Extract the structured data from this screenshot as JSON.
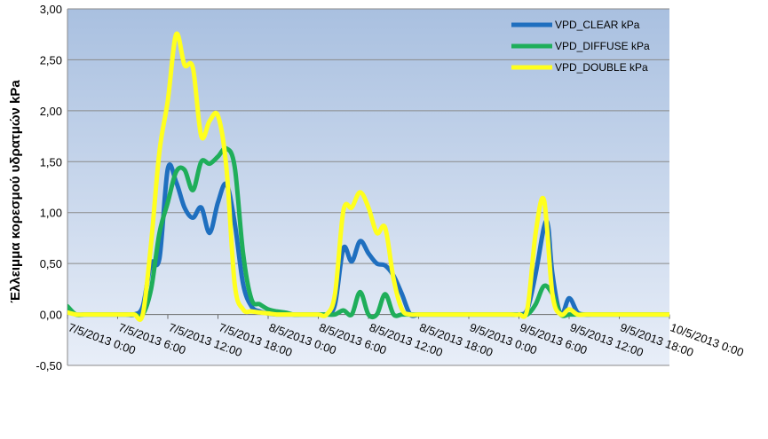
{
  "chart_data": {
    "type": "line",
    "ylabel": "Έλλειμμα κορεσμού υδρατμών kPa",
    "xlabel": "",
    "title": "",
    "ylim": [
      -0.5,
      3.0
    ],
    "yticks": [
      "-0,50",
      "0,00",
      "0,50",
      "1,00",
      "1,50",
      "2,00",
      "2,50",
      "3,00"
    ],
    "ytick_values": [
      -0.5,
      0,
      0.5,
      1.0,
      1.5,
      2.0,
      2.5,
      3.0
    ],
    "xlim_hours": [
      0,
      72
    ],
    "xtick_labels": [
      "7/5/2013 0:00",
      "7/5/2013 6:00",
      "7/5/2013 12:00",
      "7/5/2013 18:00",
      "8/5/2013 0:00",
      "8/5/2013 6:00",
      "8/5/2013 12:00",
      "8/5/2013 18:00",
      "9/5/2013 0:00",
      "9/5/2013 6:00",
      "9/5/2013 12:00",
      "9/5/2013 18:00",
      "10/5/2013 0:00"
    ],
    "grid": true,
    "legend_position": "top-right",
    "series": [
      {
        "name": "VPD_CLEAR kPa",
        "color": "#1f6fbf",
        "x": [
          0,
          1,
          2,
          3,
          4,
          5,
          6,
          7,
          8,
          9,
          10,
          11,
          12,
          13,
          14,
          15,
          16,
          17,
          18,
          19,
          20,
          21,
          22,
          23,
          24,
          25,
          26,
          27,
          28,
          29,
          30,
          31,
          32,
          33,
          34,
          35,
          36,
          37,
          38,
          39,
          40,
          41,
          42,
          43,
          44,
          45,
          46,
          47,
          48,
          49,
          50,
          51,
          52,
          53,
          54,
          55,
          56,
          57,
          57.5,
          58,
          59,
          60,
          61,
          62,
          63,
          64,
          65,
          66,
          67,
          68,
          69,
          70,
          71,
          72
        ],
        "y": [
          0.03,
          0,
          0,
          0,
          0,
          0,
          0,
          0,
          0,
          0.08,
          0.5,
          0.55,
          1.43,
          1.3,
          1.05,
          0.95,
          1.05,
          0.8,
          1.1,
          1.28,
          0.9,
          0.3,
          0.08,
          0.03,
          0.01,
          0,
          0,
          0,
          0,
          0,
          0,
          0,
          0.1,
          0.65,
          0.52,
          0.72,
          0.6,
          0.5,
          0.48,
          0.38,
          0.2,
          0,
          0,
          0,
          0,
          0,
          0,
          0,
          0,
          0,
          0,
          0,
          0,
          0,
          0,
          0.05,
          0.4,
          0.86,
          0.86,
          0.4,
          0,
          0.16,
          0.02,
          0,
          0,
          0,
          0,
          0,
          0,
          0,
          0,
          0,
          0,
          0
        ]
      },
      {
        "name": "VPD_DIFFUSE kPa",
        "color": "#1fae5a",
        "x": [
          0,
          1,
          2,
          3,
          4,
          5,
          6,
          7,
          8,
          9,
          10,
          11,
          12,
          13,
          14,
          15,
          16,
          17,
          18,
          19,
          20,
          21,
          22,
          23,
          24,
          25,
          26,
          27,
          28,
          29,
          30,
          31,
          32,
          33,
          34,
          35,
          36,
          37,
          38,
          39,
          40,
          41,
          42,
          43,
          44,
          45,
          46,
          47,
          48,
          49,
          50,
          51,
          52,
          53,
          54,
          55,
          56,
          57,
          58,
          59,
          60,
          61,
          62,
          63,
          64,
          65,
          66,
          67,
          68,
          69,
          70,
          71,
          72
        ],
        "y": [
          0.08,
          0,
          0,
          0,
          0,
          0,
          0,
          0,
          0,
          0,
          0.25,
          0.8,
          1.1,
          1.4,
          1.42,
          1.22,
          1.5,
          1.48,
          1.55,
          1.63,
          1.45,
          0.6,
          0.15,
          0.1,
          0.05,
          0.03,
          0.02,
          0,
          0,
          0,
          0,
          0,
          0,
          0.04,
          0,
          0.22,
          0,
          0,
          0.2,
          0,
          0,
          0,
          0,
          0,
          0,
          0,
          0,
          0,
          0,
          0,
          0,
          0,
          0,
          0,
          0,
          0,
          0.1,
          0.28,
          0.2,
          0,
          0,
          0,
          0,
          0,
          0,
          0,
          0,
          0,
          0,
          0,
          0,
          0,
          0
        ]
      },
      {
        "name": "VPD_DOUBLE kPa",
        "color": "#ffff1e",
        "x": [
          0,
          1,
          2,
          3,
          4,
          5,
          6,
          7,
          8,
          9,
          10,
          11,
          12,
          13,
          14,
          15,
          16,
          17,
          18,
          19,
          20,
          21,
          22,
          23,
          24,
          25,
          26,
          27,
          28,
          29,
          30,
          31,
          32,
          33,
          34,
          35,
          36,
          37,
          38,
          39,
          40,
          41,
          42,
          43,
          44,
          45,
          46,
          47,
          48,
          49,
          50,
          51,
          52,
          53,
          54,
          55,
          56,
          57,
          58,
          59,
          60,
          61,
          62,
          63,
          64,
          65,
          66,
          67,
          68,
          69,
          70,
          71,
          72
        ],
        "y": [
          0.02,
          0,
          0,
          0,
          0,
          0,
          0,
          0,
          0,
          0,
          0.7,
          1.6,
          2.1,
          2.75,
          2.45,
          2.42,
          1.75,
          1.9,
          1.95,
          1.45,
          0.3,
          0.05,
          0.03,
          0.02,
          0.01,
          0,
          0,
          0,
          0,
          0,
          0,
          0,
          0.2,
          1.02,
          1.05,
          1.2,
          1.05,
          0.8,
          0.85,
          0.35,
          0.05,
          0,
          0,
          0,
          0,
          0,
          0,
          0,
          0,
          0,
          0,
          0,
          0,
          0,
          0,
          0.05,
          0.8,
          1.12,
          0.2,
          0,
          0.05,
          0,
          0,
          0,
          0,
          0,
          0,
          0,
          0,
          0,
          0,
          0,
          0
        ]
      }
    ]
  }
}
